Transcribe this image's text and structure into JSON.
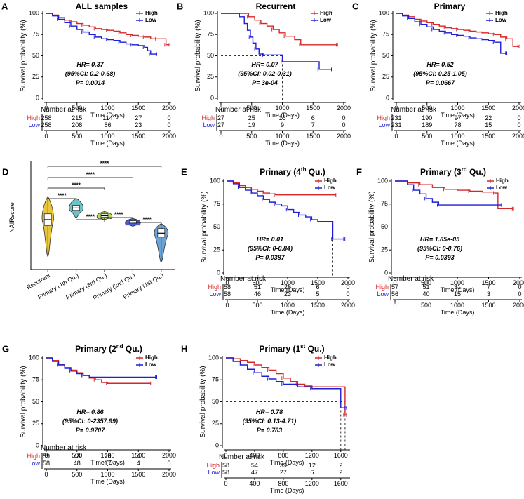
{
  "colors": {
    "high": "#d62728",
    "low": "#1f1fd6",
    "axis": "#000000",
    "refline": "#333333"
  },
  "chart_data": [
    {
      "id": "A",
      "type": "line",
      "letter": "A",
      "title": "ALL samples",
      "xlabel": "Time (Days)",
      "ylabel": "Survival probability (%)",
      "xticks": [
        0,
        500,
        1000,
        1500,
        2000
      ],
      "xlim": [
        0,
        2000
      ],
      "yticks": [
        0,
        25,
        50,
        75,
        100
      ],
      "ylim": [
        0,
        100
      ],
      "legend": {
        "high": "High",
        "low": "Low",
        "position": "top-right"
      },
      "stats": [
        "HR= 0.37",
        "(95%CI: 0.2-0.68)",
        "P= 0.0014"
      ],
      "series": [
        {
          "name": "High",
          "x": [
            0,
            100,
            200,
            300,
            400,
            500,
            600,
            700,
            800,
            900,
            1000,
            1100,
            1200,
            1300,
            1400,
            1500,
            1600,
            1700,
            1800,
            1900,
            1950,
            2000
          ],
          "y": [
            100,
            98,
            95,
            92,
            90,
            88,
            86,
            84,
            82,
            81,
            80,
            79,
            77,
            75,
            74,
            73,
            72,
            70,
            70,
            70,
            63,
            63
          ]
        },
        {
          "name": "Low",
          "x": [
            0,
            100,
            200,
            300,
            400,
            500,
            600,
            700,
            800,
            900,
            1000,
            1100,
            1200,
            1300,
            1400,
            1500,
            1600,
            1650,
            1700,
            1800
          ],
          "y": [
            100,
            97,
            93,
            89,
            85,
            81,
            78,
            75,
            72,
            70,
            69,
            68,
            66,
            64,
            63,
            62,
            60,
            56,
            52,
            52
          ]
        }
      ],
      "risk": {
        "title": "Number at risk",
        "high_label": "High",
        "low_label": "Low",
        "high": [
          "258",
          "215",
          "114",
          "27",
          "0"
        ],
        "low": [
          "258",
          "208",
          "86",
          "23",
          "0"
        ]
      }
    },
    {
      "id": "B",
      "type": "line",
      "letter": "B",
      "title": "Recurrent",
      "xlabel": "Time (Days)",
      "ylabel": "Survival probability (%)",
      "xticks": [
        0,
        500,
        1000,
        1500,
        2000
      ],
      "xlim": [
        0,
        2000
      ],
      "yticks": [
        0,
        25,
        50,
        75,
        100
      ],
      "ylim": [
        0,
        100
      ],
      "legend": {
        "high": "High",
        "low": "Low",
        "position": "top-right"
      },
      "stats": [
        "HR= 0.07",
        "(95%CI: 0.02-0.31)",
        "P= 3e-04"
      ],
      "median_line": {
        "y": 50,
        "x": [
          1000
        ]
      },
      "series": [
        {
          "name": "High",
          "x": [
            0,
            350,
            450,
            550,
            650,
            750,
            850,
            950,
            1050,
            1200,
            1300,
            1400,
            1900
          ],
          "y": [
            100,
            100,
            96,
            92,
            88,
            85,
            81,
            77,
            73,
            69,
            63,
            63,
            63
          ]
        },
        {
          "name": "Low",
          "x": [
            0,
            300,
            380,
            430,
            480,
            520,
            570,
            620,
            700,
            800,
            1000,
            1500,
            1600,
            1800
          ],
          "y": [
            100,
            96,
            88,
            80,
            72,
            65,
            58,
            52,
            51,
            51,
            43,
            43,
            34,
            34
          ]
        }
      ],
      "risk": {
        "title": "Number at risk",
        "high_label": "High",
        "low_label": "Low",
        "high": [
          "27",
          "25",
          "16",
          "6",
          "0"
        ],
        "low": [
          "27",
          "19",
          "9",
          "7",
          "0"
        ]
      }
    },
    {
      "id": "C",
      "type": "line",
      "letter": "C",
      "title": "Primary",
      "xlabel": "Time (Days)",
      "ylabel": "Survival probability (%)",
      "xticks": [
        0,
        500,
        1000,
        1500,
        2000
      ],
      "xlim": [
        0,
        2000
      ],
      "yticks": [
        0,
        25,
        50,
        75,
        100
      ],
      "ylim": [
        0,
        100
      ],
      "legend": {
        "high": "High",
        "low": "Low",
        "position": "top-right"
      },
      "stats": [
        "HR= 0.52",
        "(95%CI: 0.25-1.05)",
        "P= 0.0667"
      ],
      "series": [
        {
          "name": "High",
          "x": [
            0,
            100,
            200,
            300,
            400,
            500,
            600,
            700,
            800,
            900,
            1000,
            1100,
            1200,
            1300,
            1400,
            1500,
            1600,
            1700,
            1800,
            1900,
            2000
          ],
          "y": [
            100,
            98,
            96,
            93,
            91,
            89,
            87,
            85,
            83,
            82,
            81,
            80,
            79,
            78,
            77,
            76,
            75,
            72,
            70,
            61,
            61
          ]
        },
        {
          "name": "Low",
          "x": [
            0,
            100,
            200,
            300,
            400,
            500,
            600,
            700,
            800,
            900,
            1000,
            1100,
            1200,
            1300,
            1400,
            1500,
            1600,
            1700,
            1800
          ],
          "y": [
            100,
            97,
            94,
            90,
            87,
            84,
            81,
            79,
            77,
            75,
            74,
            73,
            71,
            70,
            69,
            68,
            66,
            53,
            53
          ]
        }
      ],
      "risk": {
        "title": "Number at risk",
        "high_label": "High",
        "low_label": "Low",
        "high": [
          "231",
          "190",
          "97",
          "22",
          "0"
        ],
        "low": [
          "231",
          "189",
          "78",
          "15",
          "0"
        ]
      }
    },
    {
      "id": "E",
      "type": "line",
      "letter": "E",
      "title": "Primary (4",
      "title_sup": "th",
      "title_end": " Qu.)",
      "xlabel": "Time (Days)",
      "ylabel": "Survival probability (%)",
      "xticks": [
        0,
        500,
        1000,
        1500,
        2000
      ],
      "xlim": [
        0,
        2000
      ],
      "yticks": [
        0,
        25,
        50,
        75,
        100
      ],
      "ylim": [
        0,
        100
      ],
      "legend": {
        "high": "High",
        "low": "Low",
        "position": "top-right"
      },
      "stats": [
        "HR= 0.01",
        "(95%CI: 0-0.84)",
        "P= 0.0387"
      ],
      "median_line": {
        "y": 50,
        "x": [
          1750
        ]
      },
      "series": [
        {
          "name": "High",
          "x": [
            0,
            100,
            200,
            300,
            400,
            500,
            600,
            700,
            800,
            1800
          ],
          "y": [
            100,
            98,
            95,
            93,
            91,
            89,
            87,
            86,
            85,
            85
          ]
        },
        {
          "name": "Low",
          "x": [
            0,
            100,
            200,
            300,
            400,
            500,
            600,
            700,
            800,
            900,
            1000,
            1100,
            1200,
            1300,
            1400,
            1500,
            1750,
            1800,
            1950
          ],
          "y": [
            100,
            97,
            93,
            90,
            87,
            84,
            80,
            77,
            75,
            73,
            69,
            66,
            63,
            61,
            58,
            56,
            37,
            37,
            37
          ]
        }
      ],
      "risk": {
        "title": "Number at risk",
        "high_label": "High",
        "low_label": "Low",
        "high": [
          "58",
          "51",
          "26",
          "6",
          "0"
        ],
        "low": [
          "58",
          "46",
          "23",
          "5",
          "0"
        ]
      }
    },
    {
      "id": "F",
      "type": "line",
      "letter": "F",
      "title": "Primary (3",
      "title_sup": "rd",
      "title_end": " Qu.)",
      "xlabel": "Time (Days)",
      "ylabel": "Survival probability (%)",
      "xticks": [
        0,
        500,
        1000,
        1500,
        2000
      ],
      "xlim": [
        0,
        2000
      ],
      "yticks": [
        0,
        25,
        50,
        75,
        100
      ],
      "ylim": [
        0,
        100
      ],
      "legend": {
        "high": "High",
        "low": "Low",
        "position": "top-right"
      },
      "stats": [
        "HR= 1.85e-05",
        "(95%CI: 0-0.76)",
        "P= 0.0393"
      ],
      "series": [
        {
          "name": "High",
          "x": [
            0,
            200,
            400,
            600,
            800,
            1000,
            1200,
            1400,
            1600,
            1650,
            1900
          ],
          "y": [
            100,
            98,
            96,
            93,
            91,
            90,
            89,
            88,
            87,
            70,
            70
          ]
        },
        {
          "name": "Low",
          "x": [
            0,
            200,
            300,
            400,
            500,
            600,
            700,
            1700
          ],
          "y": [
            100,
            96,
            90,
            86,
            81,
            77,
            74,
            74
          ]
        }
      ],
      "risk": {
        "title": "Number at risk",
        "high_label": "High",
        "low_label": "Low",
        "high": [
          "57",
          "51",
          "31",
          "7",
          "0"
        ],
        "low": [
          "56",
          "40",
          "15",
          "3",
          "0"
        ]
      }
    },
    {
      "id": "G",
      "type": "line",
      "letter": "G",
      "title": "Primary (2",
      "title_sup": "nd",
      "title_end": " Qu.)",
      "xlabel": "Time (Days)",
      "ylabel": "Survival probability (%)",
      "xticks": [
        0,
        500,
        1000,
        1500,
        2000
      ],
      "xlim": [
        0,
        2000
      ],
      "yticks": [
        0,
        25,
        50,
        75,
        100
      ],
      "ylim": [
        0,
        100
      ],
      "legend": {
        "high": "High",
        "low": "Low",
        "position": "top-right"
      },
      "stats": [
        "HR= 0.86",
        "(95%CI: 0-2357.99)",
        "P= 0.9707"
      ],
      "series": [
        {
          "name": "High",
          "x": [
            0,
            100,
            200,
            300,
            400,
            500,
            600,
            700,
            800,
            900,
            1000,
            1700
          ],
          "y": [
            100,
            97,
            93,
            89,
            86,
            83,
            80,
            77,
            75,
            72,
            71,
            71
          ]
        },
        {
          "name": "Low",
          "x": [
            0,
            100,
            200,
            300,
            400,
            500,
            600,
            700,
            1800
          ],
          "y": [
            100,
            96,
            92,
            88,
            85,
            82,
            80,
            78,
            78
          ]
        }
      ],
      "risk": {
        "title": "Number at risk",
        "high_label": "High",
        "low_label": "Low",
        "high": [
          "59",
          "48",
          "26",
          "4",
          "0"
        ],
        "low": [
          "58",
          "48",
          "17",
          "4",
          "0"
        ]
      }
    },
    {
      "id": "H",
      "type": "line",
      "letter": "H",
      "title": "Primary (1",
      "title_sup": "st",
      "title_end": " Qu.)",
      "xlabel": "Time (Days)",
      "ylabel": "Survival probability (%)",
      "xticks": [
        0,
        400,
        800,
        1200,
        1600
      ],
      "xlim": [
        0,
        1700
      ],
      "yticks": [
        0,
        25,
        50,
        75,
        100
      ],
      "ylim": [
        0,
        100
      ],
      "legend": {
        "high": "High",
        "low": "Low",
        "position": "top-right"
      },
      "stats": [
        "HR= 0.78",
        "(95%CI: 0.13-4.71)",
        "P= 0.783"
      ],
      "median_line": {
        "y": 50,
        "x": [
          1600,
          1660
        ]
      },
      "series": [
        {
          "name": "High",
          "x": [
            0,
            100,
            200,
            300,
            400,
            500,
            600,
            700,
            800,
            900,
            1000,
            1100,
            1200,
            1600,
            1660,
            1680
          ],
          "y": [
            100,
            99,
            97,
            95,
            92,
            89,
            86,
            82,
            77,
            73,
            70,
            68,
            67,
            67,
            35,
            35
          ]
        },
        {
          "name": "Low",
          "x": [
            0,
            100,
            200,
            300,
            400,
            500,
            600,
            700,
            800,
            1000,
            1200,
            1600,
            1680
          ],
          "y": [
            100,
            96,
            92,
            87,
            83,
            79,
            76,
            73,
            70,
            67,
            65,
            43,
            43
          ]
        }
      ],
      "risk": {
        "title": "Number at risk",
        "high_label": "High",
        "low_label": "Low",
        "high": [
          "58",
          "54",
          "39",
          "12",
          "2"
        ],
        "low": [
          "58",
          "47",
          "27",
          "6",
          "2"
        ]
      }
    },
    {
      "id": "D",
      "type": "violin",
      "letter": "D",
      "ylabel": "NAIRscore",
      "categories": [
        "Recurrent",
        "Primary (4th Qu.)",
        "Primary (3rd Qu.)",
        "Primary (2nd Qu.)",
        "Primary (1st Qu.)"
      ],
      "colors": [
        "#e8c53a",
        "#6fc2c4",
        "#b7e04a",
        "#4a5ad1",
        "#6aa3d8"
      ],
      "ylim": [
        1.3,
        3.6
      ],
      "medians": [
        2.55,
        2.85,
        2.65,
        2.48,
        2.2
      ],
      "q1": [
        2.4,
        2.79,
        2.61,
        2.45,
        2.1
      ],
      "q3": [
        2.7,
        2.92,
        2.7,
        2.52,
        2.32
      ],
      "mins": [
        1.6,
        2.6,
        2.55,
        2.38,
        1.45
      ],
      "maxs": [
        3.15,
        3.1,
        2.76,
        2.58,
        2.45
      ],
      "comparisons": [
        {
          "from": 0,
          "to": 4,
          "label": "****"
        },
        {
          "from": 0,
          "to": 3,
          "label": "****"
        },
        {
          "from": 0,
          "to": 2,
          "label": "****"
        },
        {
          "from": 0,
          "to": 1,
          "label": "****"
        },
        {
          "from": 1,
          "to": 2,
          "label": "****"
        },
        {
          "from": 2,
          "to": 3,
          "label": "****"
        },
        {
          "from": 3,
          "to": 4,
          "label": "****"
        }
      ]
    }
  ]
}
